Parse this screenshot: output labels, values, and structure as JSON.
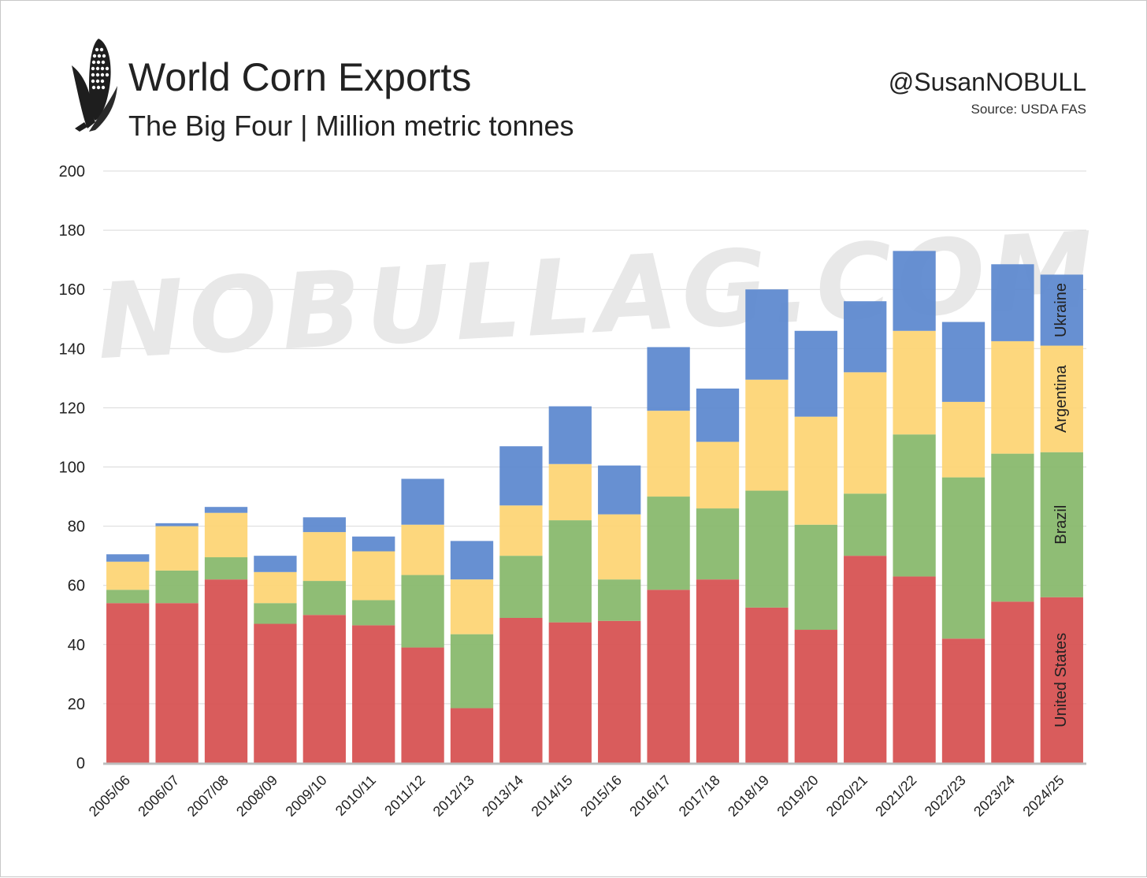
{
  "header": {
    "title": "World Corn Exports",
    "subtitle": "The Big Four | Million metric tonnes",
    "handle": "@SusanNOBULL",
    "source": "Source: USDA FAS",
    "logo_icon": "corn-icon"
  },
  "watermark": "NOBULLAG.COM",
  "chart_data": {
    "type": "bar",
    "stacked": true,
    "title": "World Corn Exports",
    "subtitle": "The Big Four | Million metric tonnes",
    "xlabel": "",
    "ylabel": "",
    "ylim": [
      0,
      200
    ],
    "yticks": [
      0,
      20,
      40,
      60,
      80,
      100,
      120,
      140,
      160,
      180,
      200
    ],
    "grid": true,
    "legend": "inline labels on last bar",
    "categories": [
      "2005/06",
      "2006/07",
      "2007/08",
      "2008/09",
      "2009/10",
      "2010/11",
      "2011/12",
      "2012/13",
      "2013/14",
      "2014/15",
      "2015/16",
      "2016/17",
      "2017/18",
      "2018/19",
      "2019/20",
      "2020/21",
      "2021/22",
      "2022/23",
      "2023/24",
      "2024/25"
    ],
    "series": [
      {
        "name": "United States",
        "color": "#d65050",
        "values": [
          54,
          54,
          62,
          47,
          50,
          46.5,
          39,
          18.5,
          49,
          47.5,
          48,
          58.5,
          62,
          52.5,
          45,
          70,
          63,
          42,
          54.5,
          56
        ]
      },
      {
        "name": "Brazil",
        "color": "#86b86a",
        "values": [
          4.5,
          11,
          7.5,
          7,
          11.5,
          8.5,
          24.5,
          25,
          21,
          34.5,
          14,
          31.5,
          24,
          39.5,
          35.5,
          21,
          48,
          54.5,
          50,
          49
        ]
      },
      {
        "name": "Argentina",
        "color": "#fdd473",
        "values": [
          9.5,
          15,
          15,
          10.5,
          16.5,
          16.5,
          17,
          18.5,
          17,
          19,
          22,
          29,
          22.5,
          37.5,
          36.5,
          41,
          35,
          25.5,
          38,
          36
        ]
      },
      {
        "name": "Ukraine",
        "color": "#5b88cf",
        "values": [
          2.5,
          1,
          2,
          5.5,
          5,
          5,
          15.5,
          13,
          20,
          19.5,
          16.5,
          21.5,
          18,
          30.5,
          29,
          24,
          27,
          27,
          26,
          24
        ]
      }
    ]
  }
}
